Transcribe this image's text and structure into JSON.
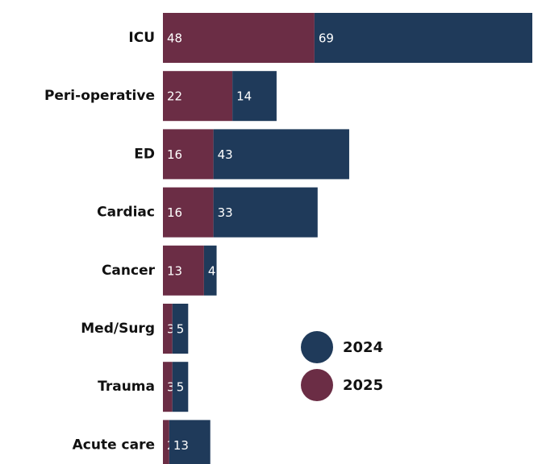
{
  "chart_data": {
    "type": "stacked-bar-horizontal",
    "categories": [
      "ICU",
      "Peri-operative",
      "ED",
      "Cardiac",
      "Cancer",
      "Med/Surg",
      "Trauma",
      "Acute care"
    ],
    "series": [
      {
        "name": "2025",
        "color": "#6b2d45",
        "values": [
          48,
          22,
          16,
          16,
          13,
          3,
          3,
          2
        ]
      },
      {
        "name": "2024",
        "color": "#1f3a5a",
        "values": [
          69,
          14,
          43,
          33,
          4,
          5,
          5,
          13
        ]
      }
    ],
    "legend": [
      1,
      0
    ],
    "xlim": [
      0,
      117
    ]
  }
}
